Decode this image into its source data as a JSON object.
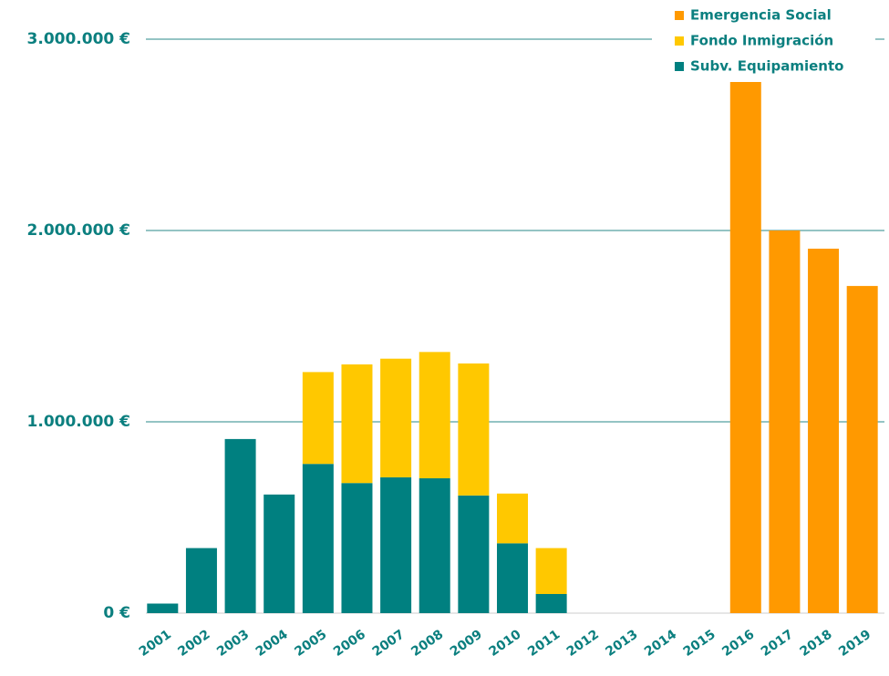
{
  "chart_data": {
    "type": "stacked_bar",
    "categories": [
      "2001",
      "2002",
      "2003",
      "2004",
      "2005",
      "2006",
      "2007",
      "2008",
      "2009",
      "2010",
      "2011",
      "2012",
      "2013",
      "2014",
      "2015",
      "2016",
      "2017",
      "2018",
      "2019"
    ],
    "series": [
      {
        "name": "Subv. Equipamiento",
        "color": "#008080",
        "values": [
          50000,
          340000,
          910000,
          620000,
          780000,
          680000,
          710000,
          705000,
          615000,
          365000,
          100000,
          null,
          null,
          null,
          null,
          null,
          null,
          null,
          null
        ]
      },
      {
        "name": "Fondo Inmigración",
        "color": "#ffc800",
        "values": [
          null,
          null,
          null,
          null,
          480000,
          620000,
          620000,
          660000,
          690000,
          260000,
          240000,
          null,
          null,
          null,
          null,
          null,
          null,
          null,
          null
        ]
      },
      {
        "name": "Emergencia Social",
        "color": "#ff9900",
        "values": [
          null,
          null,
          null,
          null,
          null,
          null,
          null,
          null,
          null,
          null,
          null,
          null,
          null,
          null,
          null,
          2930000,
          2000000,
          1905000,
          1710000
        ]
      }
    ],
    "ylim": [
      0,
      3000000
    ],
    "yticks": [
      {
        "value": 0,
        "label": "0 €"
      },
      {
        "value": 1000000,
        "label": "1.000.000 €"
      },
      {
        "value": 2000000,
        "label": "2.000.000 €"
      },
      {
        "value": 3000000,
        "label": "3.000.000 €"
      }
    ],
    "grid": true,
    "legend": "top-right"
  }
}
